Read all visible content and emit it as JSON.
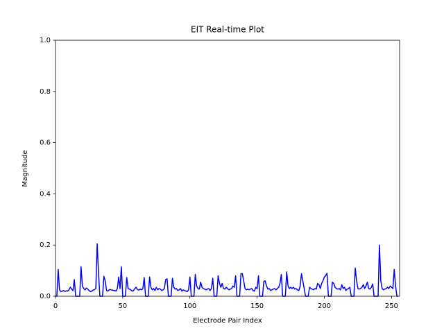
{
  "chart_data": {
    "type": "line",
    "title": "EIT Real-time Plot",
    "x_label": "Electrode Pair Index",
    "y_label": "Magnitude",
    "series": [
      {
        "color": "#0000ff",
        "values": [
          0,
          0,
          0.105,
          0.025,
          0.018,
          0.02,
          0.022,
          0.019,
          0.021,
          0.02,
          0.025,
          0.035,
          0.028,
          0.022,
          0.065,
          0,
          0,
          0,
          0,
          0.115,
          0.04,
          0.03,
          0.025,
          0.032,
          0.028,
          0.022,
          0.018,
          0.02,
          0.024,
          0.026,
          0.03,
          0.205,
          0.09,
          0,
          0,
          0,
          0.078,
          0.06,
          0.022,
          0.02,
          0.025,
          0.026,
          0.024,
          0.023,
          0.022,
          0.02,
          0.03,
          0.075,
          0.03,
          0.115,
          0,
          0,
          0,
          0.073,
          0.03,
          0.028,
          0.025,
          0.02,
          0.022,
          0.03,
          0.035,
          0.026,
          0.024,
          0.028,
          0.025,
          0.03,
          0.073,
          0,
          0,
          0,
          0.075,
          0.035,
          0.025,
          0.03,
          0.022,
          0.035,
          0.025,
          0.03,
          0.028,
          0.022,
          0.025,
          0.03,
          0.065,
          0.068,
          0,
          0,
          0,
          0.07,
          0.035,
          0.028,
          0.03,
          0.022,
          0.025,
          0.03,
          0.02,
          0.025,
          0.022,
          0.02,
          0.018,
          0.025,
          0.075,
          0,
          0,
          0,
          0.085,
          0.04,
          0.03,
          0.028,
          0.055,
          0.035,
          0.03,
          0.028,
          0.025,
          0.028,
          0.03,
          0.022,
          0.03,
          0.07,
          0,
          0,
          0,
          0.08,
          0.05,
          0.035,
          0.05,
          0.03,
          0.028,
          0.035,
          0.03,
          0.025,
          0.028,
          0.03,
          0.04,
          0.035,
          0.08,
          0,
          0,
          0,
          0.088,
          0.088,
          0.06,
          0.03,
          0.025,
          0.028,
          0.025,
          0.028,
          0.03,
          0.022,
          0.02,
          0.035,
          0.03,
          0.08,
          0,
          0,
          0,
          0.058,
          0.06,
          0.04,
          0.028,
          0.03,
          0.022,
          0.025,
          0.028,
          0.03,
          0.025,
          0.03,
          0.035,
          0.05,
          0.085,
          0,
          0,
          0,
          0.095,
          0.04,
          0.03,
          0.035,
          0.03,
          0.035,
          0.028,
          0.03,
          0.025,
          0.022,
          0.04,
          0.088,
          0.06,
          0.03,
          0,
          0,
          0,
          0.035,
          0.03,
          0.028,
          0.025,
          0.03,
          0.028,
          0.05,
          0.045,
          0.03,
          0.05,
          0.06,
          0.075,
          0.08,
          0.09,
          0,
          0,
          0,
          0.055,
          0.05,
          0.035,
          0.03,
          0.028,
          0.03,
          0.025,
          0.045,
          0.03,
          0.035,
          0.022,
          0.028,
          0.03,
          0.035,
          0,
          0,
          0,
          0.11,
          0.06,
          0.03,
          0.028,
          0.03,
          0.035,
          0.045,
          0.03,
          0.04,
          0.055,
          0.03,
          0.028,
          0.035,
          0.048,
          0,
          0,
          0,
          0,
          0.2,
          0.06,
          0.03,
          0.025,
          0.028,
          0.03,
          0.035,
          0.03,
          0.04,
          0.035,
          0.03,
          0.105,
          0.04,
          0,
          0
        ]
      }
    ],
    "xlim": [
      0,
      256
    ],
    "xticks": [
      0,
      50,
      100,
      150,
      200,
      250
    ],
    "ylim": [
      0,
      1
    ],
    "yticks": [
      {
        "value": 0,
        "label": "0.0"
      },
      {
        "value": 0.2,
        "label": "0.2"
      },
      {
        "value": 0.4,
        "label": "0.4"
      },
      {
        "value": 0.6,
        "label": "0.6"
      },
      {
        "value": 0.8,
        "label": "0.8"
      },
      {
        "value": 1,
        "label": "1.0"
      }
    ],
    "grid": false
  }
}
